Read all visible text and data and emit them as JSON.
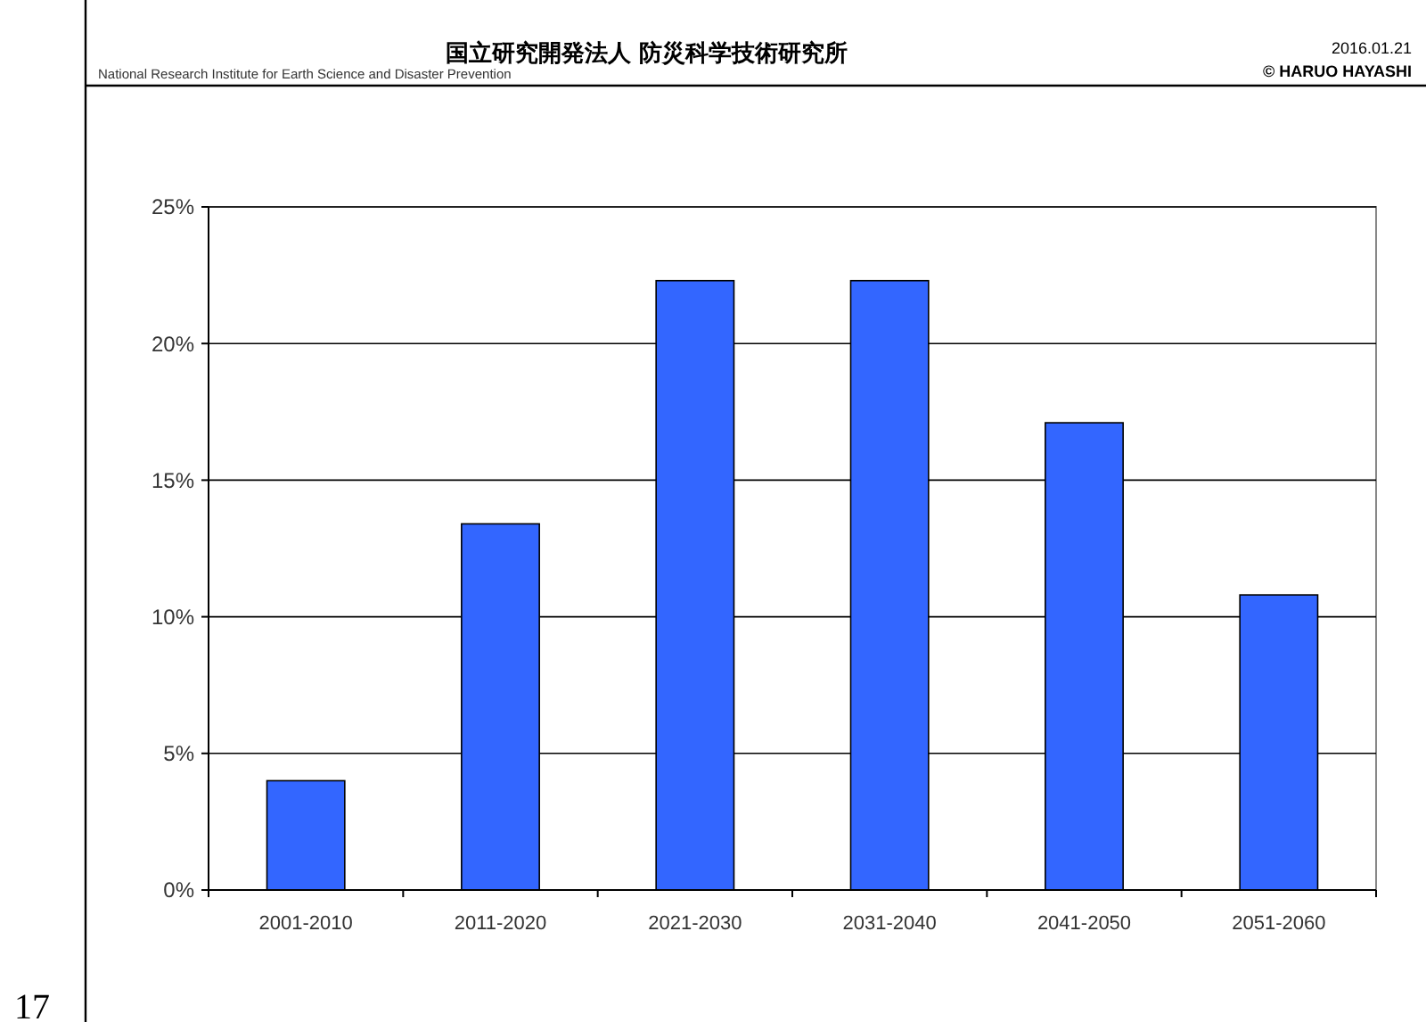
{
  "chart_data": {
    "type": "bar",
    "categories": [
      "2001-2010",
      "2011-2020",
      "2021-2030",
      "2031-2040",
      "2041-2050",
      "2051-2060"
    ],
    "values": [
      4.0,
      13.4,
      22.3,
      22.3,
      17.1,
      10.8
    ],
    "color": "#3366ff",
    "ylim": [
      0,
      25
    ],
    "yticks": [
      {
        "value": 0,
        "label": "0%"
      },
      {
        "value": 5,
        "label": "5%"
      },
      {
        "value": 10,
        "label": "10%"
      },
      {
        "value": 15,
        "label": "15%"
      },
      {
        "value": 20,
        "label": "20%"
      },
      {
        "value": 25,
        "label": "25%"
      }
    ],
    "grid": "y",
    "annotations": [
      "国立研究開発法人 防災科学技術研究所",
      "National Research Institute for Earth Science and Disaster Prevention",
      "2016.01.21",
      "© HARUO HAYASHI",
      "17"
    ]
  }
}
